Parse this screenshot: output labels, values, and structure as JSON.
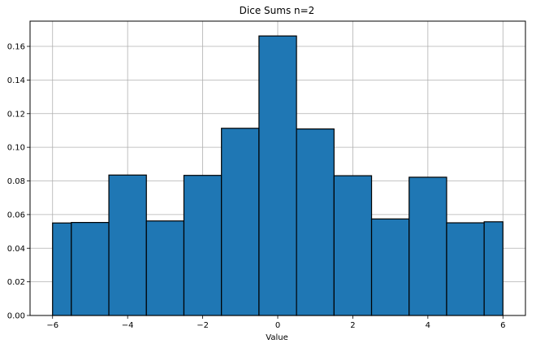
{
  "chart_data": {
    "type": "bar",
    "title": "Dice Sums n=2",
    "xlabel": "Value",
    "ylabel": "",
    "xlim": [
      -6.6,
      6.6
    ],
    "ylim": [
      0,
      0.175
    ],
    "grid": true,
    "bar_color": "#1f77b4",
    "edge_color": "#000000",
    "bins": [
      {
        "x0": -6.0,
        "x1": -5.5,
        "value": 0.055
      },
      {
        "x0": -5.5,
        "x1": -4.5,
        "value": 0.0553
      },
      {
        "x0": -4.5,
        "x1": -3.5,
        "value": 0.0835
      },
      {
        "x0": -3.5,
        "x1": -2.5,
        "value": 0.0562
      },
      {
        "x0": -2.5,
        "x1": -1.5,
        "value": 0.0833
      },
      {
        "x0": -1.5,
        "x1": -0.5,
        "value": 0.1113
      },
      {
        "x0": -0.5,
        "x1": 0.5,
        "value": 0.1662
      },
      {
        "x0": 0.5,
        "x1": 1.5,
        "value": 0.1109
      },
      {
        "x0": 1.5,
        "x1": 2.5,
        "value": 0.0831
      },
      {
        "x0": 2.5,
        "x1": 3.5,
        "value": 0.0574
      },
      {
        "x0": 3.5,
        "x1": 4.5,
        "value": 0.0822
      },
      {
        "x0": 4.5,
        "x1": 5.5,
        "value": 0.0551
      },
      {
        "x0": 5.5,
        "x1": 6.0,
        "value": 0.0557
      }
    ],
    "x_ticks": [
      -6,
      -4,
      -2,
      0,
      2,
      4,
      6
    ],
    "x_tick_labels": [
      "−6",
      "−4",
      "−2",
      "0",
      "2",
      "4",
      "6"
    ],
    "y_ticks": [
      0.0,
      0.02,
      0.04,
      0.06,
      0.08,
      0.1,
      0.12,
      0.14,
      0.16
    ],
    "y_tick_labels": [
      "0.00",
      "0.02",
      "0.04",
      "0.06",
      "0.08",
      "0.10",
      "0.12",
      "0.14",
      "0.16"
    ]
  }
}
